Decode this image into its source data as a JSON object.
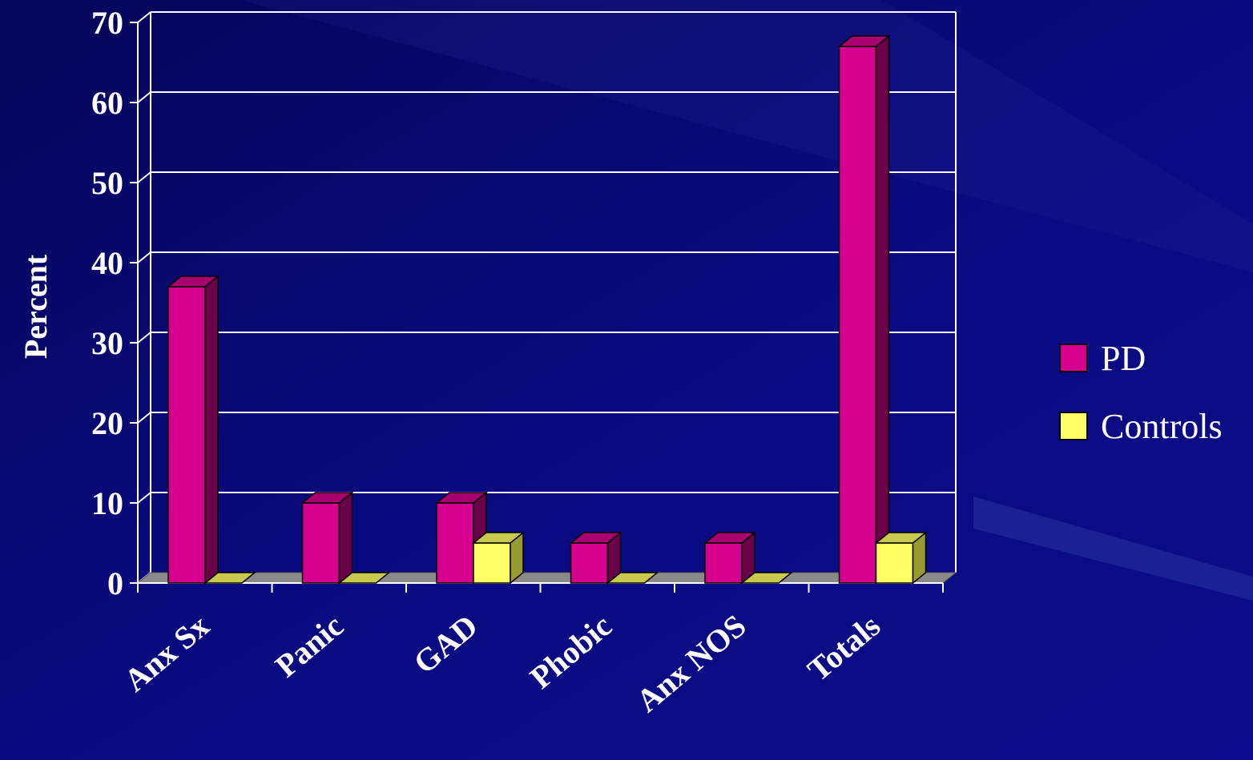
{
  "colors": {
    "background": "#0a0a78",
    "pd": "#d6008f",
    "pd_side": "#6a0047",
    "pd_top": "#a8006f",
    "controls": "#ffff66",
    "controls_side": "#9a9a33",
    "controls_top": "#c9c950",
    "floor": "#8a8a8a",
    "text": "#ffffff"
  },
  "chart_data": {
    "type": "bar",
    "title": "",
    "xlabel": "",
    "ylabel": "Percent",
    "ylim": [
      0,
      70
    ],
    "yticks": [
      0,
      10,
      20,
      30,
      40,
      50,
      60,
      70
    ],
    "grid": true,
    "legend_position": "right",
    "categories": [
      "Anx Sx",
      "Panic",
      "GAD",
      "Phobic",
      "Anx NOS",
      "Totals"
    ],
    "series": [
      {
        "name": "PD",
        "values": [
          37,
          10,
          10,
          5,
          5,
          67
        ]
      },
      {
        "name": "Controls",
        "values": [
          0,
          0,
          5,
          0,
          0,
          5
        ]
      }
    ]
  }
}
